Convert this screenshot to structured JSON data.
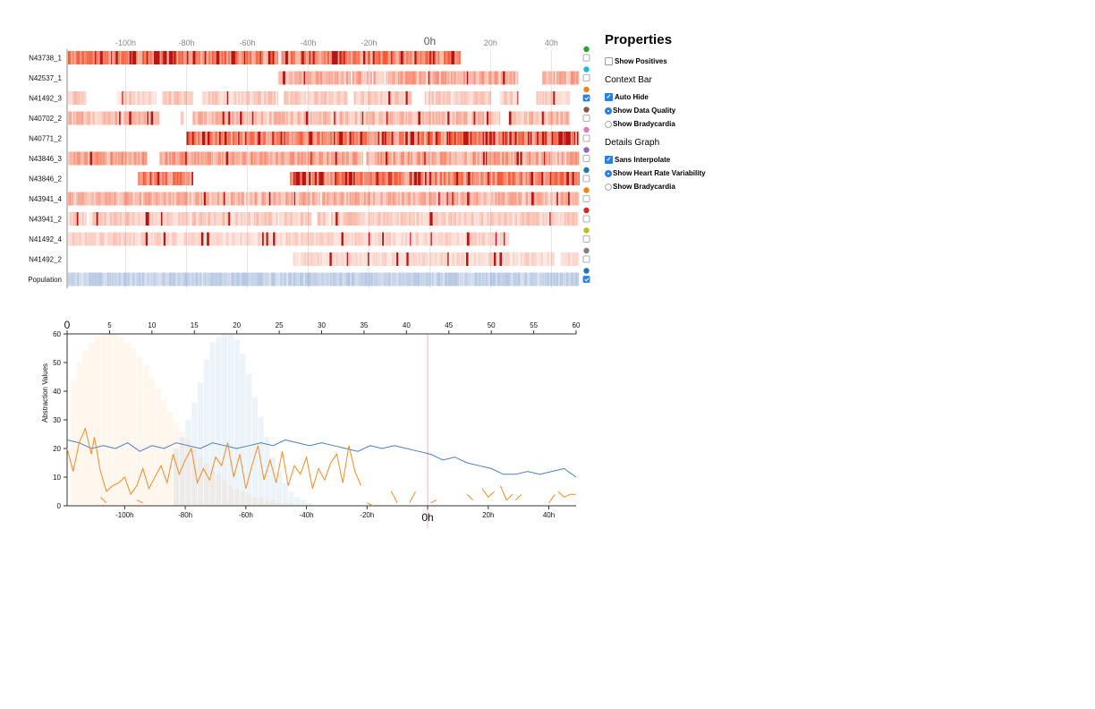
{
  "panel": {
    "title": "Properties",
    "show_positives": "Show Positives",
    "context_heading": "Context Bar",
    "context_options": [
      {
        "label": "Auto Hide",
        "control": "checkbox",
        "checked": true
      },
      {
        "label": "Show Data Quality",
        "control": "radio",
        "checked": true
      },
      {
        "label": "Show Bradycardia",
        "control": "radio",
        "checked": false
      }
    ],
    "details_heading": "Details Graph",
    "details_options": [
      {
        "label": "Sans Interpolate",
        "control": "checkbox",
        "checked": true
      },
      {
        "label": "Show Heart Rate Variability",
        "control": "radio",
        "checked": true
      },
      {
        "label": "Show Bradycardia",
        "control": "radio",
        "checked": false
      }
    ]
  },
  "chart_data": [
    {
      "type": "heatmap",
      "xaxis_ticks": [
        "-100h",
        "-80h",
        "-60h",
        "-40h",
        "-20h",
        "0h",
        "20h",
        "40h"
      ],
      "xlim": [
        -119,
        49
      ],
      "rows": [
        {
          "label": "N43738_1",
          "color": "#2ca02c",
          "checked": false,
          "ranges": [
            [
              -119,
              -50
            ],
            [
              -49,
              10
            ]
          ],
          "gaps": [],
          "intensity": 0.85
        },
        {
          "label": "N42537_1",
          "color": "#17becf",
          "checked": false,
          "ranges": [
            [
              -50,
              29
            ],
            [
              37,
              49
            ]
          ],
          "gaps": [
            -26,
            -19,
            -15,
            -1
          ],
          "intensity": 0.5
        },
        {
          "label": "N41492_3",
          "color": "#ff7f0e",
          "checked": true,
          "ranges": [
            [
              -119,
              -113
            ],
            [
              -103,
              -90
            ],
            [
              -88,
              -78
            ],
            [
              -75,
              -50
            ],
            [
              -48,
              -27
            ],
            [
              -25,
              -6
            ],
            [
              -2,
              20
            ],
            [
              23,
              29
            ],
            [
              35,
              46
            ]
          ],
          "gaps": [],
          "intensity": 0.3
        },
        {
          "label": "N40702_2",
          "color": "#8c564b",
          "checked": false,
          "ranges": [
            [
              -119,
              -89
            ],
            [
              -82,
              -81
            ],
            [
              -78,
              23
            ],
            [
              26,
              46
            ]
          ],
          "gaps": [],
          "intensity": 0.4
        },
        {
          "label": "N40771_2",
          "color": "#e377c2",
          "checked": false,
          "ranges": [
            [
              -80,
              49
            ]
          ],
          "gaps": [],
          "intensity": 0.9
        },
        {
          "label": "N43846_3",
          "color": "#9467bd",
          "checked": false,
          "ranges": [
            [
              -119,
              -93
            ],
            [
              -89,
              -22
            ],
            [
              -21,
              49
            ]
          ],
          "gaps": [],
          "intensity": 0.55
        },
        {
          "label": "N43846_2",
          "color": "#1f77b4",
          "checked": false,
          "ranges": [
            [
              -96,
              -78
            ],
            [
              -46,
              49
            ]
          ],
          "gaps": [],
          "intensity": 0.85
        },
        {
          "label": "N43941_4",
          "color": "#ff7f0e",
          "checked": false,
          "ranges": [
            [
              -119,
              49
            ]
          ],
          "gaps": [
            -61,
            -36
          ],
          "intensity": 0.45
        },
        {
          "label": "N43941_2",
          "color": "#d62728",
          "checked": false,
          "ranges": [
            [
              -119,
              -113
            ],
            [
              -112,
              -39
            ],
            [
              -37,
              49
            ]
          ],
          "gaps": [
            -50,
            -33
          ],
          "intensity": 0.3
        },
        {
          "label": "N41492_4",
          "color": "#bcbd22",
          "checked": false,
          "ranges": [
            [
              -119,
              26
            ]
          ],
          "gaps": [],
          "intensity": 0.25
        },
        {
          "label": "N41492_2",
          "color": "#7f7f7f",
          "checked": false,
          "ranges": [
            [
              -45,
              41
            ],
            [
              43,
              49
            ]
          ],
          "gaps": [],
          "intensity": 0.22
        },
        {
          "label": "Population",
          "color": "#1f77b4",
          "checked": true,
          "ranges": [
            [
              -119,
              49
            ]
          ],
          "gaps": [],
          "intensity": 0.3,
          "palette": "blue"
        }
      ]
    },
    {
      "type": "line",
      "ylabel": "Abstraction Values",
      "ylim": [
        0,
        60
      ],
      "y_ticks": [
        0,
        10,
        20,
        30,
        40,
        50,
        60
      ],
      "top_axis_ticks": [
        "0",
        "5",
        "10",
        "15",
        "20",
        "25",
        "30",
        "35",
        "40",
        "45",
        "50",
        "55",
        "60"
      ],
      "bottom_axis_ticks": [
        "-100h",
        "-80h",
        "-60h",
        "-40h",
        "-20h",
        "0h",
        "20h",
        "40h"
      ],
      "xlim": [
        -119,
        49
      ],
      "marker_x": 0,
      "histograms": [
        {
          "name": "orange",
          "color": "#ff7f0e",
          "bin_width": 2,
          "bins": [
            [
              -118,
              44
            ],
            [
              -116,
              50
            ],
            [
              -114,
              54
            ],
            [
              -112,
              57
            ],
            [
              -110,
              59
            ],
            [
              -108,
              60
            ],
            [
              -106,
              60
            ],
            [
              -104,
              60
            ],
            [
              -102,
              59
            ],
            [
              -100,
              57
            ],
            [
              -98,
              55
            ],
            [
              -96,
              52
            ],
            [
              -94,
              49
            ],
            [
              -92,
              45
            ],
            [
              -90,
              41
            ],
            [
              -88,
              37
            ],
            [
              -86,
              33
            ],
            [
              -84,
              29
            ],
            [
              -82,
              26
            ],
            [
              -80,
              23
            ],
            [
              -78,
              20
            ],
            [
              -76,
              17
            ],
            [
              -74,
              15
            ],
            [
              -72,
              13
            ],
            [
              -70,
              11
            ],
            [
              -68,
              9
            ],
            [
              -66,
              7
            ],
            [
              -64,
              6
            ],
            [
              -62,
              5
            ],
            [
              -60,
              4
            ],
            [
              -58,
              3
            ],
            [
              -56,
              3
            ],
            [
              -54,
              2
            ],
            [
              -52,
              2
            ],
            [
              -50,
              1
            ],
            [
              -48,
              1
            ],
            [
              -46,
              1
            ]
          ]
        },
        {
          "name": "blue",
          "color": "#1f77b4",
          "bin_width": 2,
          "bins": [
            [
              -84,
              20
            ],
            [
              -82,
              24
            ],
            [
              -80,
              30
            ],
            [
              -78,
              36
            ],
            [
              -76,
              43
            ],
            [
              -74,
              51
            ],
            [
              -72,
              57
            ],
            [
              -70,
              59
            ],
            [
              -68,
              60
            ],
            [
              -66,
              60
            ],
            [
              -64,
              58
            ],
            [
              -62,
              53
            ],
            [
              -60,
              46
            ],
            [
              -58,
              38
            ],
            [
              -56,
              31
            ],
            [
              -54,
              24
            ],
            [
              -52,
              17
            ],
            [
              -50,
              12
            ],
            [
              -48,
              8
            ],
            [
              -46,
              5
            ],
            [
              -44,
              3
            ],
            [
              -42,
              2
            ],
            [
              -40,
              1
            ]
          ]
        }
      ],
      "series": [
        {
          "color": "#4a7fb8",
          "x": [
            -119,
            -115,
            -111,
            -107,
            -103,
            -99,
            -95,
            -91,
            -87,
            -83,
            -79,
            -75,
            -71,
            -67,
            -63,
            -59,
            -55,
            -51,
            -47,
            -43,
            -39,
            -35,
            -31,
            -27,
            -23,
            -19,
            -15,
            -11,
            -7,
            -3,
            1,
            5,
            9,
            13,
            17,
            21,
            25,
            29,
            33,
            37,
            41,
            45,
            49
          ],
          "y": [
            23,
            22,
            20,
            21,
            20,
            22,
            19,
            21,
            20,
            22,
            21,
            20,
            22,
            21,
            20,
            21,
            22,
            21,
            23,
            22,
            21,
            22,
            21,
            20,
            19,
            21,
            20,
            21,
            20,
            19,
            18,
            16,
            17,
            15,
            14,
            13,
            11,
            11,
            12,
            11,
            12,
            13,
            10
          ]
        },
        {
          "color": "#f58b25",
          "segments": [
            {
              "x": [
                -119,
                -117,
                -115,
                -113,
                -111,
                -110,
                -108,
                -106,
                -104,
                -102,
                -100,
                -98,
                -96,
                -94,
                -92,
                -90,
                -88,
                -86,
                -84,
                -82,
                -80,
                -78,
                -76,
                -74,
                -72,
                -70,
                -68,
                -66,
                -64,
                -62,
                -60,
                -58,
                -56,
                -54,
                -52,
                -50,
                -48,
                -46,
                -44,
                -42,
                -40,
                -38,
                -36,
                -34,
                -32,
                -30,
                -28,
                -26,
                -24,
                -22
              ],
              "y": [
                20,
                12,
                22,
                27,
                18,
                24,
                12,
                5,
                7,
                8,
                10,
                4,
                7,
                13,
                6,
                10,
                14,
                8,
                18,
                11,
                16,
                20,
                8,
                13,
                9,
                17,
                14,
                22,
                10,
                18,
                6,
                14,
                21,
                9,
                16,
                8,
                19,
                7,
                14,
                11,
                17,
                6,
                13,
                9,
                15,
                18,
                8,
                21,
                12,
                7
              ]
            },
            {
              "x": [
                -108,
                -106
              ],
              "y": [
                3,
                1
              ]
            },
            {
              "x": [
                -96,
                -94
              ],
              "y": [
                2,
                1
              ]
            },
            {
              "x": [
                -20,
                -18
              ],
              "y": [
                1,
                0
              ]
            },
            {
              "x": [
                -12,
                -10
              ],
              "y": [
                5,
                1
              ]
            },
            {
              "x": [
                -6,
                -4
              ],
              "y": [
                1,
                5
              ]
            },
            {
              "x": [
                1,
                3
              ],
              "y": [
                1,
                2
              ]
            },
            {
              "x": [
                13,
                15
              ],
              "y": [
                4,
                2
              ]
            },
            {
              "x": [
                18,
                20,
                22
              ],
              "y": [
                6,
                3,
                5
              ]
            },
            {
              "x": [
                24,
                26,
                28
              ],
              "y": [
                7,
                2,
                4
              ]
            },
            {
              "x": [
                29,
                31
              ],
              "y": [
                2,
                4
              ]
            },
            {
              "x": [
                40,
                42
              ],
              "y": [
                1,
                4
              ]
            },
            {
              "x": [
                43,
                45,
                47,
                49
              ],
              "y": [
                5,
                3,
                4,
                4
              ]
            }
          ]
        }
      ]
    }
  ]
}
